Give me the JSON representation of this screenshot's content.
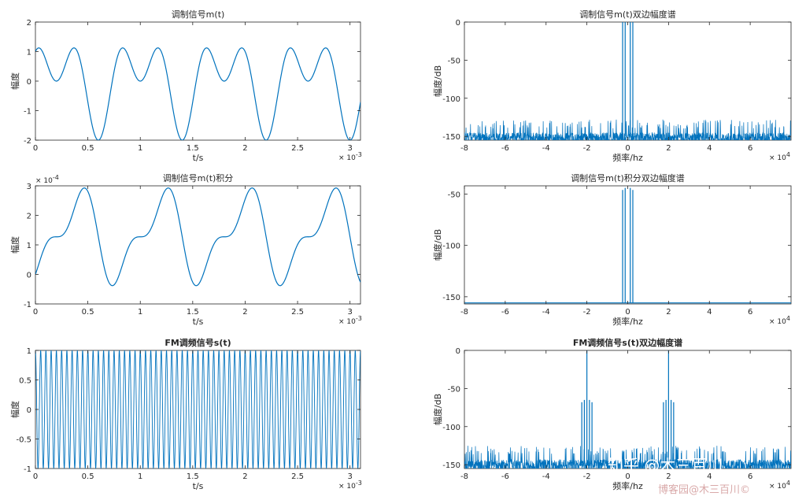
{
  "chart_data": [
    {
      "type": "line",
      "title": "调制信号m(t)",
      "xlabel": "t/s",
      "ylabel": "幅度",
      "xlim": [
        0,
        3.1
      ],
      "ylim": [
        -2,
        2
      ],
      "x_exponent": "× 10-3",
      "xticks": [
        "0",
        "0.5",
        "1",
        "1.5",
        "2",
        "2.5",
        "3"
      ],
      "yticks": [
        "-2",
        "-1",
        "0",
        "1",
        "2"
      ],
      "signal": {
        "formula": "sin(2π·1250·t) + cos(2π·2500·t)",
        "period": 0.8,
        "offset": 0
      },
      "color": "#0072BD",
      "grid": false
    },
    {
      "type": "line",
      "title": "调制信号m(t)双边幅度谱",
      "xlabel": "频率/hz",
      "ylabel": "幅度/dB",
      "xlim": [
        -8,
        8
      ],
      "ylim": [
        -155,
        0
      ],
      "x_exponent": "× 104",
      "xticks": [
        "-8",
        "-6",
        "-4",
        "-2",
        "0",
        "2",
        "4",
        "6"
      ],
      "yticks": [
        "-150",
        "-100",
        "-50",
        "0"
      ],
      "spikes": [
        {
          "x": -0.25,
          "y": 0
        },
        {
          "x": -0.125,
          "y": 0
        },
        {
          "x": 0.125,
          "y": 0
        },
        {
          "x": 0.25,
          "y": 0
        }
      ],
      "noise": {
        "low": -155,
        "high": -128,
        "floor": -150
      },
      "color": "#0072BD",
      "grid": false
    },
    {
      "type": "line",
      "title": "调制信号m(t)积分",
      "xlabel": "t/s",
      "ylabel": "幅度",
      "xlim": [
        0,
        3.1
      ],
      "ylim": [
        -1,
        3
      ],
      "x_exponent": "× 10-3",
      "y_exponent": "× 10-4",
      "xticks": [
        "0",
        "0.5",
        "1",
        "1.5",
        "2",
        "2.5",
        "3"
      ],
      "yticks": [
        "-1",
        "0",
        "1",
        "2",
        "3"
      ],
      "signal": {
        "formula": "∫ m(t) dt",
        "period": 0.8,
        "offset": 0
      },
      "color": "#0072BD",
      "grid": false
    },
    {
      "type": "line",
      "title": "调制信号m(t)积分双边幅度谱",
      "xlabel": "频率/hz",
      "ylabel": "幅度/dB",
      "xlim": [
        -8,
        8
      ],
      "ylim": [
        -157,
        -42
      ],
      "x_exponent": "× 104",
      "xticks": [
        "-8",
        "-6",
        "-4",
        "-2",
        "0",
        "2",
        "4",
        "6"
      ],
      "yticks": [
        "-150",
        "-100",
        "-50"
      ],
      "spikes": [
        {
          "x": -0.25,
          "y": -46
        },
        {
          "x": -0.125,
          "y": -44
        },
        {
          "x": 0.125,
          "y": -44
        },
        {
          "x": 0.25,
          "y": -46
        }
      ],
      "baseline": -156,
      "color": "#0072BD",
      "grid": false
    },
    {
      "type": "line",
      "title": "FM调频信号s(t)",
      "xlabel": "t/s",
      "ylabel": "幅度",
      "xlim": [
        0,
        3.1
      ],
      "ylim": [
        -1,
        1
      ],
      "x_exponent": "× 10-3",
      "xticks": [
        "0",
        "0.5",
        "1",
        "1.5",
        "2",
        "2.5",
        "3"
      ],
      "yticks": [
        "-1",
        "-0.5",
        "0",
        "0.5",
        "1"
      ],
      "carrier_cycles": 62,
      "color": "#0072BD",
      "grid": false
    },
    {
      "type": "line",
      "title": "FM调频信号s(t)双边幅度谱",
      "xlabel": "频率/hz",
      "ylabel": "幅度/dB",
      "xlim": [
        -8,
        8
      ],
      "ylim": [
        -155,
        0
      ],
      "x_exponent": "× 104",
      "xticks": [
        "-8",
        "-6",
        "-4",
        "-2",
        "0",
        "2",
        "4",
        "6"
      ],
      "yticks": [
        "-150",
        "-100",
        "-50",
        "0"
      ],
      "spikes": [
        {
          "x": -2.0,
          "y": 0
        },
        {
          "x": 2.0,
          "y": 0
        },
        {
          "x": -2.25,
          "y": -68
        },
        {
          "x": -2.125,
          "y": -65
        },
        {
          "x": -1.875,
          "y": -65
        },
        {
          "x": -1.75,
          "y": -68
        },
        {
          "x": 1.75,
          "y": -68
        },
        {
          "x": 1.875,
          "y": -65
        },
        {
          "x": 2.125,
          "y": -65
        },
        {
          "x": 2.25,
          "y": -68
        }
      ],
      "noise": {
        "low": -155,
        "high": -125,
        "floor": -148
      },
      "color": "#0072BD",
      "grid": false
    }
  ],
  "watermark": {
    "main": "知乎 @木三百川",
    "sub": "博客园@木三百川©"
  }
}
